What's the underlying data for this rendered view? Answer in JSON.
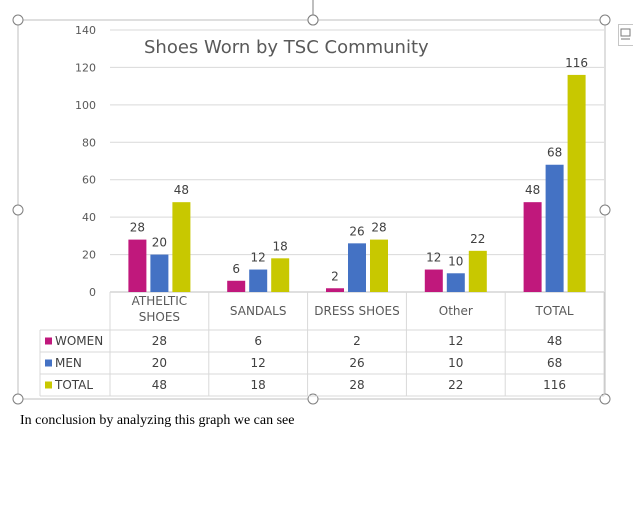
{
  "chart_data": {
    "type": "bar",
    "title": "Shoes Worn by TSC Community",
    "categories": [
      "ATHELTIC SHOES",
      "SANDALS",
      "DRESS SHOES",
      "Other",
      "TOTAL"
    ],
    "category_lines": [
      [
        "ATHELTIC",
        "SHOES"
      ],
      [
        "SANDALS"
      ],
      [
        "DRESS SHOES"
      ],
      [
        "Other"
      ],
      [
        "TOTAL"
      ]
    ],
    "series": [
      {
        "name": "WOMEN",
        "color": "#c0187c",
        "values": [
          28,
          6,
          2,
          12,
          48
        ]
      },
      {
        "name": "MEN",
        "color": "#4472c4",
        "values": [
          20,
          12,
          26,
          10,
          68
        ]
      },
      {
        "name": "TOTAL",
        "color": "#c8c800",
        "values": [
          48,
          18,
          28,
          22,
          116
        ]
      }
    ],
    "ylim": [
      0,
      140
    ],
    "yticks": [
      0,
      20,
      40,
      60,
      80,
      100,
      120,
      140
    ],
    "grid": true,
    "legend": "data-table"
  },
  "document": {
    "body_text": "In conclusion by analyzing this graph we can see"
  }
}
